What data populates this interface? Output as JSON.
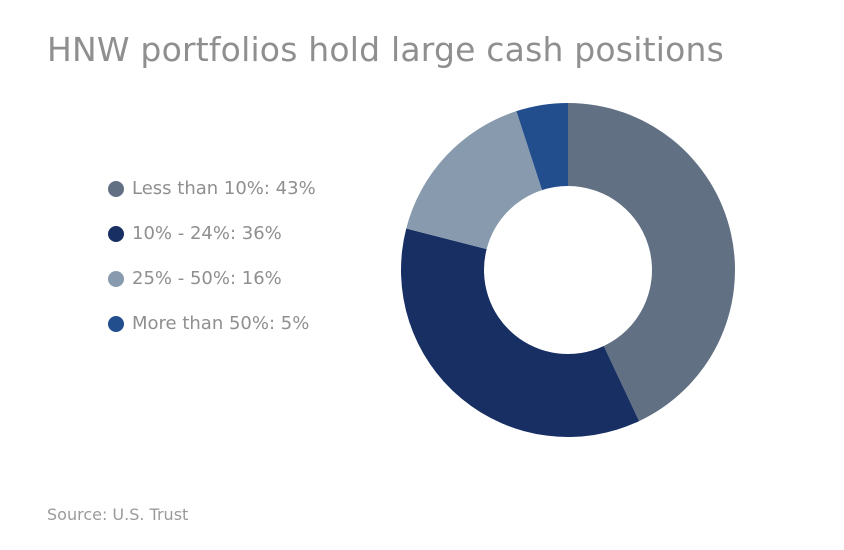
{
  "title": "HNW portfolios hold large cash positions",
  "source": "Source: U.S. Trust",
  "chart_data": {
    "type": "pie",
    "title": "HNW portfolios hold large cash positions",
    "donut": true,
    "legend_placement": "left",
    "slices": [
      {
        "label": "Less than 10%",
        "value": 43,
        "color": "#627084",
        "legend_text": "Less than 10%: 43%"
      },
      {
        "label": "10% - 24%",
        "value": 36,
        "color": "#182f64",
        "legend_text": "10% - 24%: 36%"
      },
      {
        "label": "25% - 50%",
        "value": 16,
        "color": "#889bae",
        "legend_text": "25% - 50%: 16%"
      },
      {
        "label": "More than 50%",
        "value": 5,
        "color": "#234e8d",
        "legend_text": "More than 50%: 5%"
      }
    ]
  }
}
